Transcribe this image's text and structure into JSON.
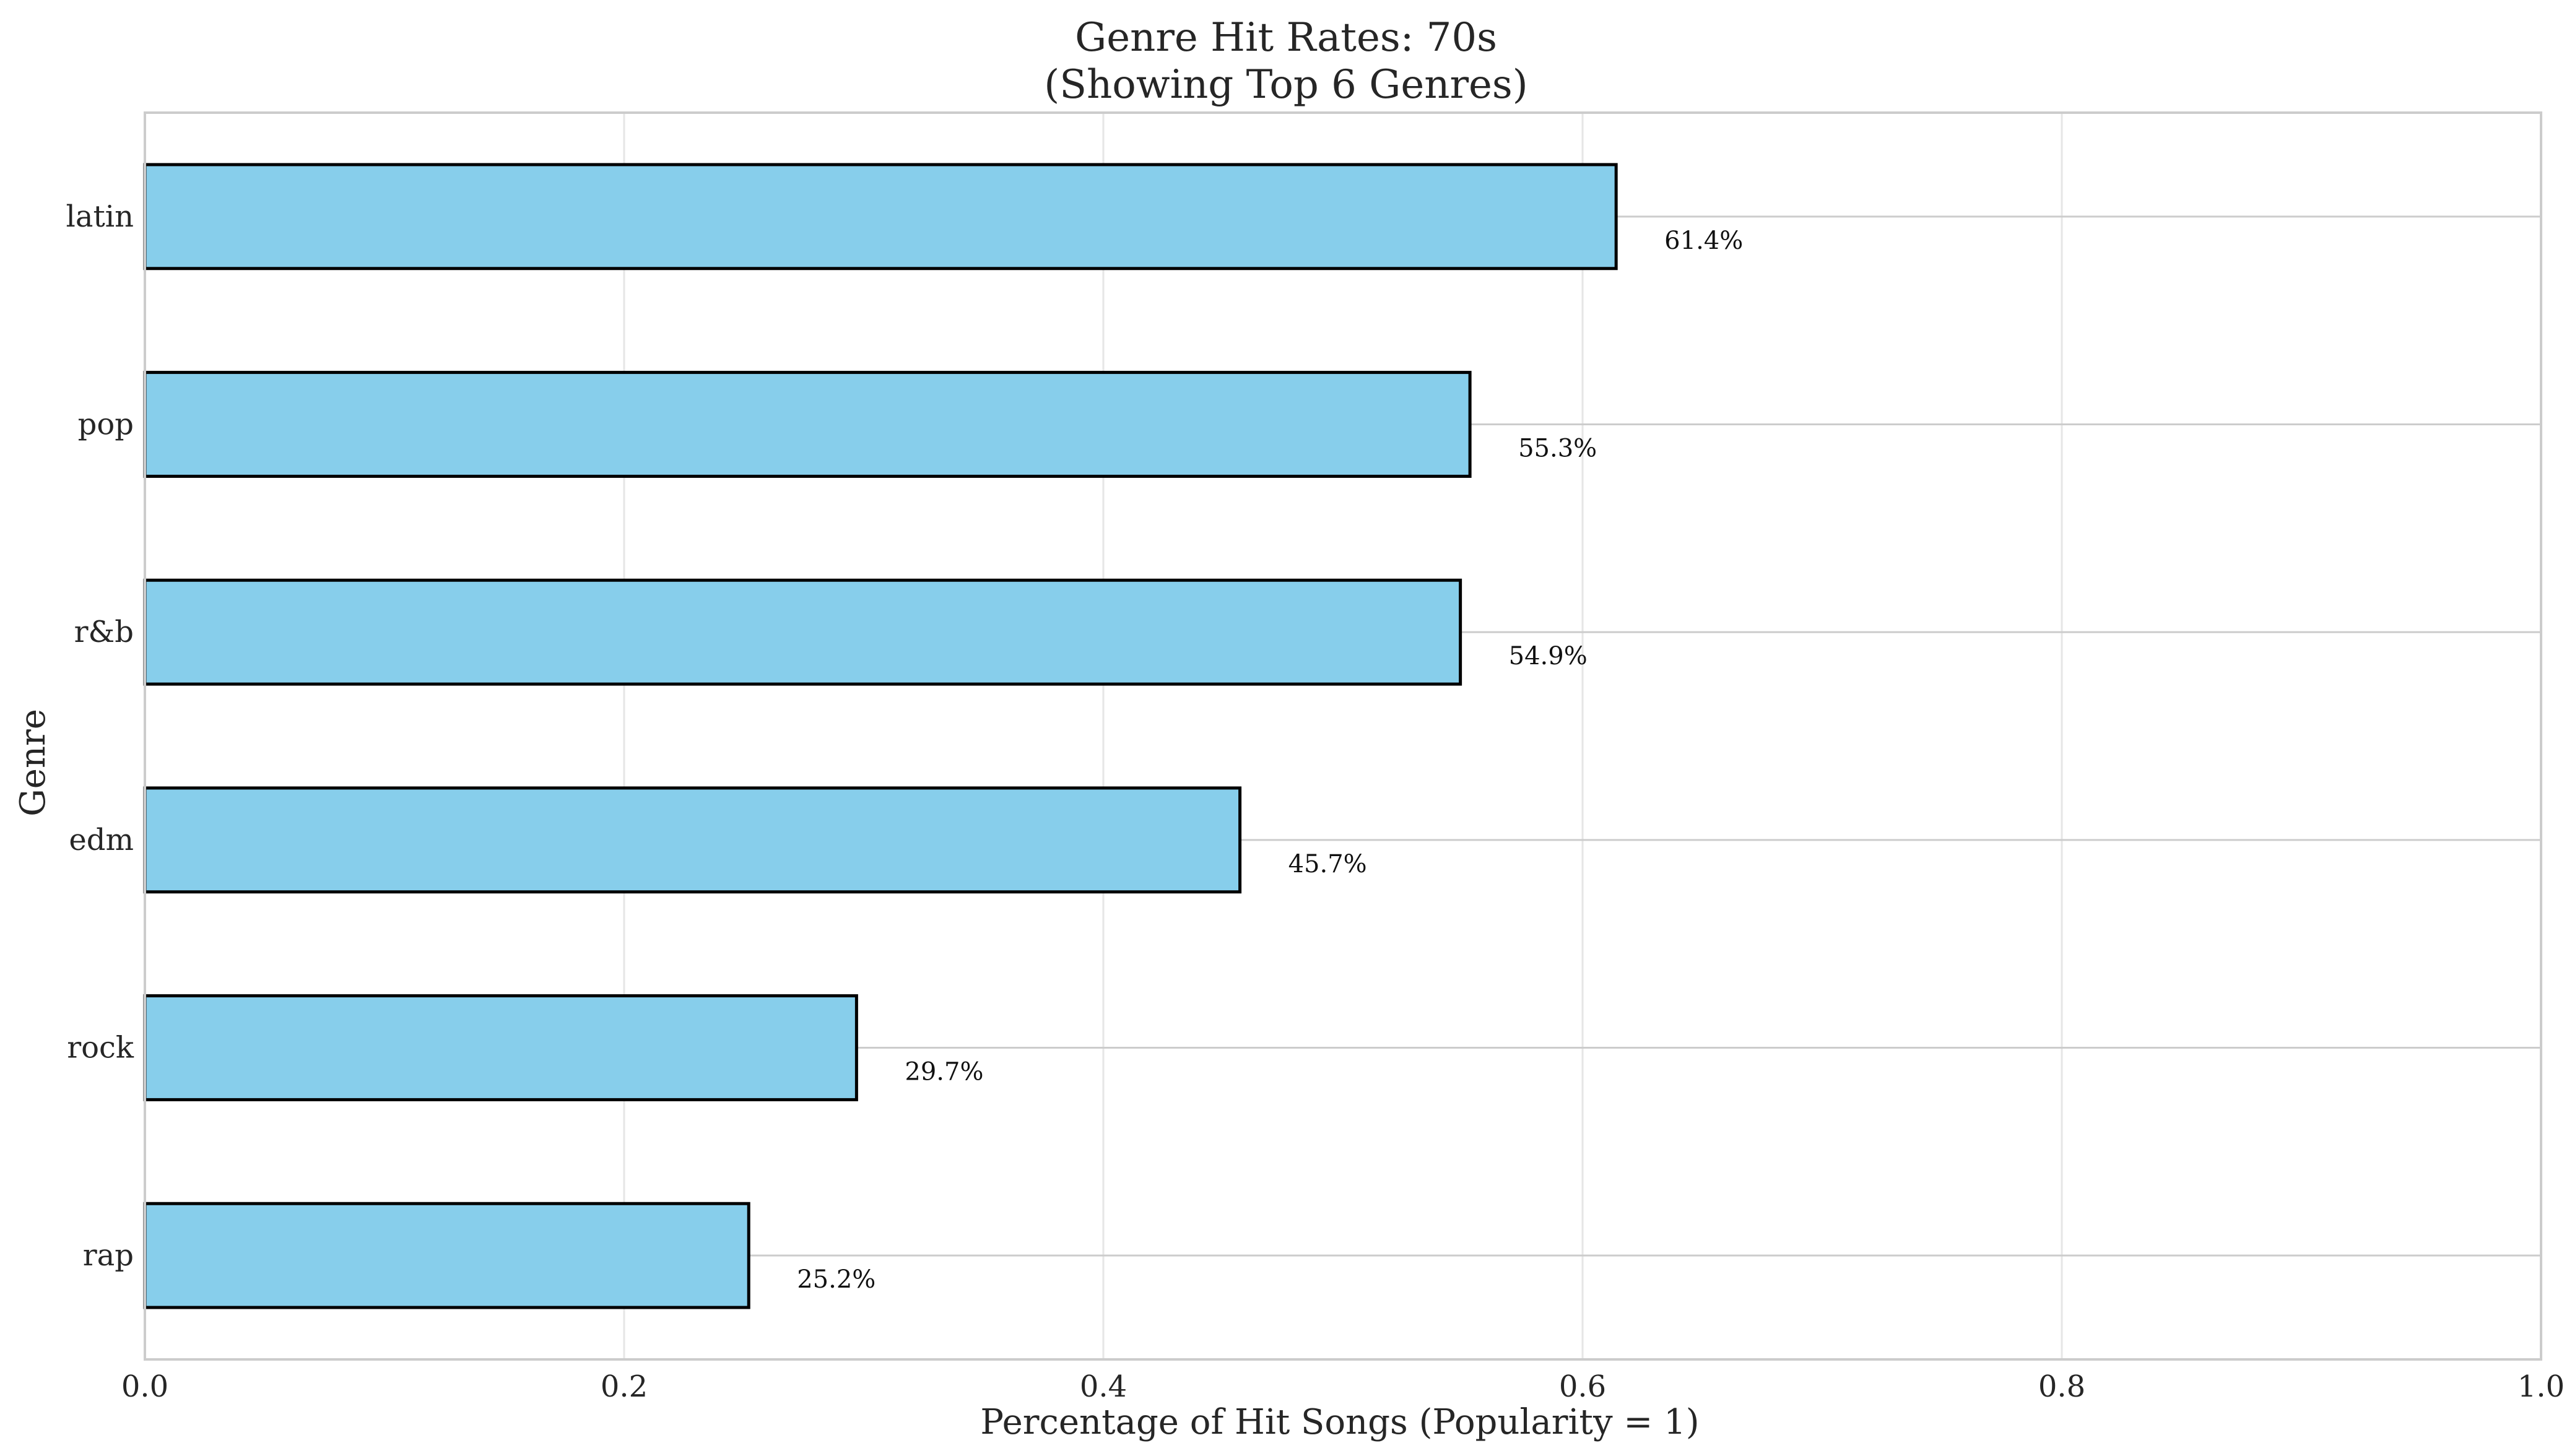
{
  "chart_data": {
    "type": "bar",
    "orientation": "horizontal",
    "title": "Genre Hit Rates: 70s",
    "subtitle": "(Showing Top 6 Genres)",
    "xlabel": "Percentage of Hit Songs (Popularity = 1)",
    "ylabel": "Genre",
    "xlim": [
      0,
      1.0
    ],
    "xticks": [
      0.0,
      0.2,
      0.4,
      0.6,
      0.8,
      1.0
    ],
    "xtick_labels": [
      "0.0",
      "0.2",
      "0.4",
      "0.6",
      "0.8",
      "1.0"
    ],
    "categories": [
      "latin",
      "pop",
      "r&b",
      "edm",
      "rock",
      "rap"
    ],
    "values": [
      0.614,
      0.553,
      0.549,
      0.457,
      0.297,
      0.252
    ],
    "data_labels": [
      "61.4%",
      "55.3%",
      "54.9%",
      "45.7%",
      "29.7%",
      "25.2%"
    ],
    "grid": true,
    "legend": "none"
  },
  "colors": {
    "bar_fill": "#87CEEB",
    "bar_edge": "#000000",
    "grid": "#e6e6e6",
    "category_line": "#cccccc",
    "spine": "#cccccc",
    "text": "#262626"
  }
}
